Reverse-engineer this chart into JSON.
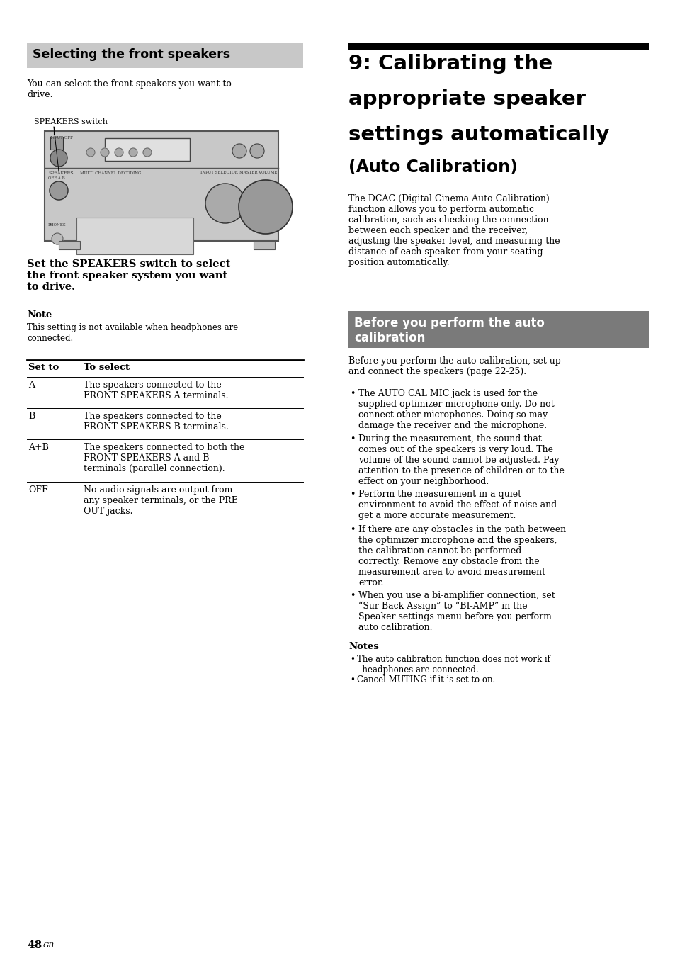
{
  "page_bg": "#ffffff",
  "left_header_bg": "#c8c8c8",
  "before_header_bg": "#7a7a7a",
  "left_header_text": "Selecting the front speakers",
  "right_header_line1": "9: Calibrating the",
  "right_header_line2": "appropriate speaker",
  "right_header_line3": "settings automatically",
  "right_subheader": "(Auto Calibration)",
  "before_header_text": "Before you perform the auto\ncalibration",
  "intro_text_left": "You can select the front speakers you want to\ndrive.",
  "speakers_switch_label": "SPEAKERS switch",
  "bold_instruction": "Set the SPEAKERS switch to select\nthe front speaker system you want\nto drive.",
  "note_title": "Note",
  "note_text": "This setting is not available when headphones are\nconnected.",
  "table_header_col1": "Set to",
  "table_header_col2": "To select",
  "table_rows": [
    [
      "A",
      "The speakers connected to the\nFRONT SPEAKERS A terminals."
    ],
    [
      "B",
      "The speakers connected to the\nFRONT SPEAKERS B terminals."
    ],
    [
      "A+B",
      "The speakers connected to both the\nFRONT SPEAKERS A and B\nterminals (parallel connection)."
    ],
    [
      "OFF",
      "No audio signals are output from\nany speaker terminals, or the PRE\nOUT jacks."
    ]
  ],
  "right_intro": "The DCAC (Digital Cinema Auto Calibration)\nfunction allows you to perform automatic\ncalibration, such as checking the connection\nbetween each speaker and the receiver,\nadjusting the speaker level, and measuring the\ndistance of each speaker from your seating\nposition automatically.",
  "before_cal_intro": "Before you perform the auto calibration, set up\nand connect the speakers (page 22-25).",
  "bullets": [
    "The AUTO CAL MIC jack is used for the\nsupplied optimizer microphone only. Do not\nconnect other microphones. Doing so may\ndamage the receiver and the microphone.",
    "During the measurement, the sound that\ncomes out of the speakers is very loud. The\nvolume of the sound cannot be adjusted. Pay\nattention to the presence of children or to the\neffect on your neighborhood.",
    "Perform the measurement in a quiet\nenvironment to avoid the effect of noise and\nget a more accurate measurement.",
    "If there are any obstacles in the path between\nthe optimizer microphone and the speakers,\nthe calibration cannot be performed\ncorrectly. Remove any obstacle from the\nmeasurement area to avoid measurement\nerror.",
    "When you use a bi-amplifier connection, set\n“Sur Back Assign” to “BI-AMP” in the\nSpeaker settings menu before you perform\nauto calibration."
  ],
  "notes_title": "Notes",
  "notes_bullets": [
    "The auto calibration function does not work if\n  headphones are connected.",
    "Cancel MUTING if it is set to on."
  ],
  "page_number": "48",
  "page_suffix": "GB"
}
